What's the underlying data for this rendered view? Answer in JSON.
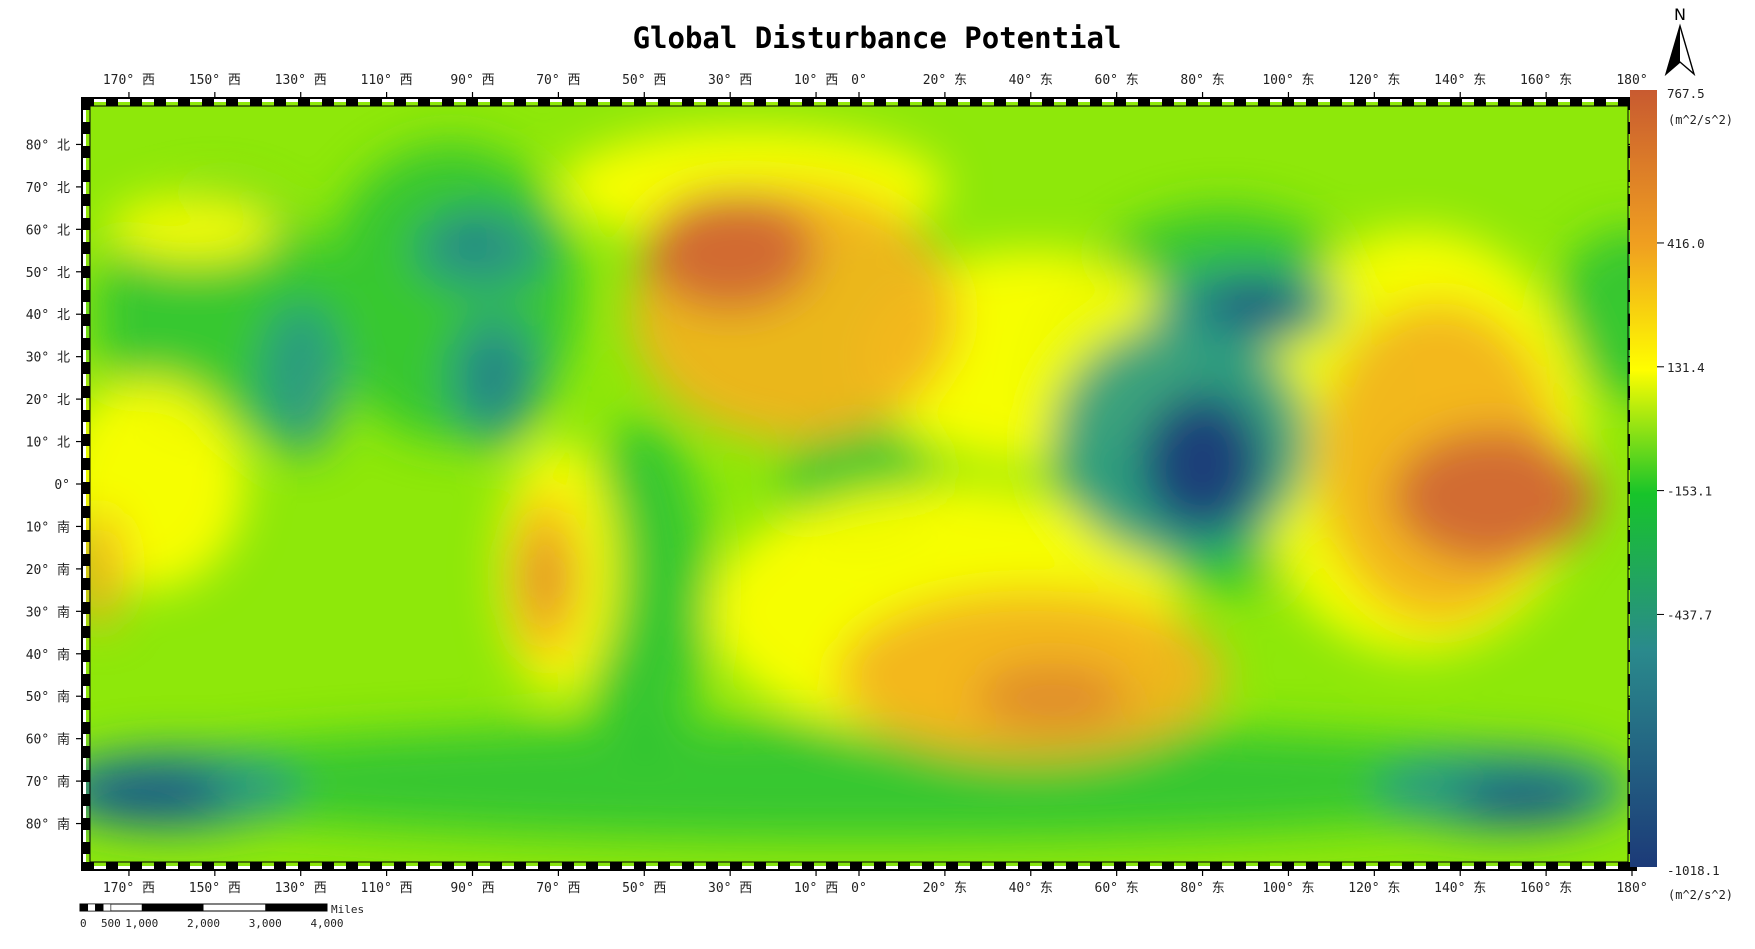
{
  "title": "Global Disturbance Potential",
  "north_arrow": {
    "label": "N"
  },
  "axes": {
    "lon_labels": [
      "170° 西",
      "150° 西",
      "130° 西",
      "110° 西",
      "90° 西",
      "70° 西",
      "50° 西",
      "30° 西",
      "10° 西",
      "0°",
      "20° 东",
      "40° 东",
      "60° 东",
      "80° 东",
      "100° 东",
      "120° 东",
      "140° 东",
      "160° 东",
      "180°"
    ],
    "lon_values": [
      -170,
      -150,
      -130,
      -110,
      -90,
      -70,
      -50,
      -30,
      -10,
      0,
      20,
      40,
      60,
      80,
      100,
      120,
      140,
      160,
      180
    ],
    "lat_labels": [
      "80° 北",
      "70° 北",
      "60° 北",
      "50° 北",
      "40° 北",
      "30° 北",
      "20° 北",
      "10° 北",
      "0°",
      "10° 南",
      "20° 南",
      "30° 南",
      "40° 南",
      "50° 南",
      "60° 南",
      "70° 南",
      "80° 南"
    ],
    "lat_values": [
      80,
      70,
      60,
      50,
      40,
      30,
      20,
      10,
      0,
      -10,
      -20,
      -30,
      -40,
      -50,
      -60,
      -70,
      -80
    ],
    "lon_range": [
      -180,
      180
    ],
    "lat_range": [
      -90,
      90
    ]
  },
  "colorbar": {
    "max_label": "767.5",
    "min_label": "-1018.1",
    "unit": "(m^2/s^2)",
    "ticks": [
      "416.0",
      "131.4",
      "-153.1",
      "-437.7"
    ],
    "tick_values": [
      416.0,
      131.4,
      -153.1,
      -437.7
    ],
    "range": [
      -1018.1,
      767.5
    ],
    "colors": [
      "#1c3a78",
      "#2a8a8c",
      "#17c42a",
      "#fffe00",
      "#f0a020",
      "#c85a30"
    ]
  },
  "scalebar": {
    "labels": [
      "0",
      "500",
      "1,000",
      "2,000",
      "3,000",
      "4,000"
    ],
    "values": [
      0,
      500,
      1000,
      2000,
      3000,
      4000
    ],
    "unit": "Miles"
  },
  "chart_data": {
    "type": "heatmap",
    "title": "Global Disturbance Potential",
    "unit": "m^2/s^2",
    "value_range": [
      -1018.1,
      767.5
    ],
    "xlim": [
      -180,
      180
    ],
    "ylim": [
      -90,
      90
    ],
    "features": [
      {
        "kind": "high",
        "lon": -30,
        "lat": 55,
        "value": 650
      },
      {
        "kind": "high",
        "lon": 145,
        "lat": 0,
        "value": 700
      },
      {
        "kind": "high",
        "lon": 45,
        "lat": -50,
        "value": 450
      },
      {
        "kind": "high",
        "lon": -75,
        "lat": -20,
        "value": 420
      },
      {
        "kind": "high",
        "lon": -178,
        "lat": -20,
        "value": 400
      },
      {
        "kind": "low",
        "lon": 80,
        "lat": 5,
        "value": -1018
      },
      {
        "kind": "low",
        "lon": 90,
        "lat": 42,
        "value": -700
      },
      {
        "kind": "low",
        "lon": -85,
        "lat": 25,
        "value": -550
      },
      {
        "kind": "low",
        "lon": -90,
        "lat": 58,
        "value": -450
      },
      {
        "kind": "low",
        "lon": -128,
        "lat": 25,
        "value": -400
      },
      {
        "kind": "low",
        "lon": -160,
        "lat": -72,
        "value": -700
      },
      {
        "kind": "low",
        "lon": 150,
        "lat": -72,
        "value": -650
      }
    ]
  }
}
